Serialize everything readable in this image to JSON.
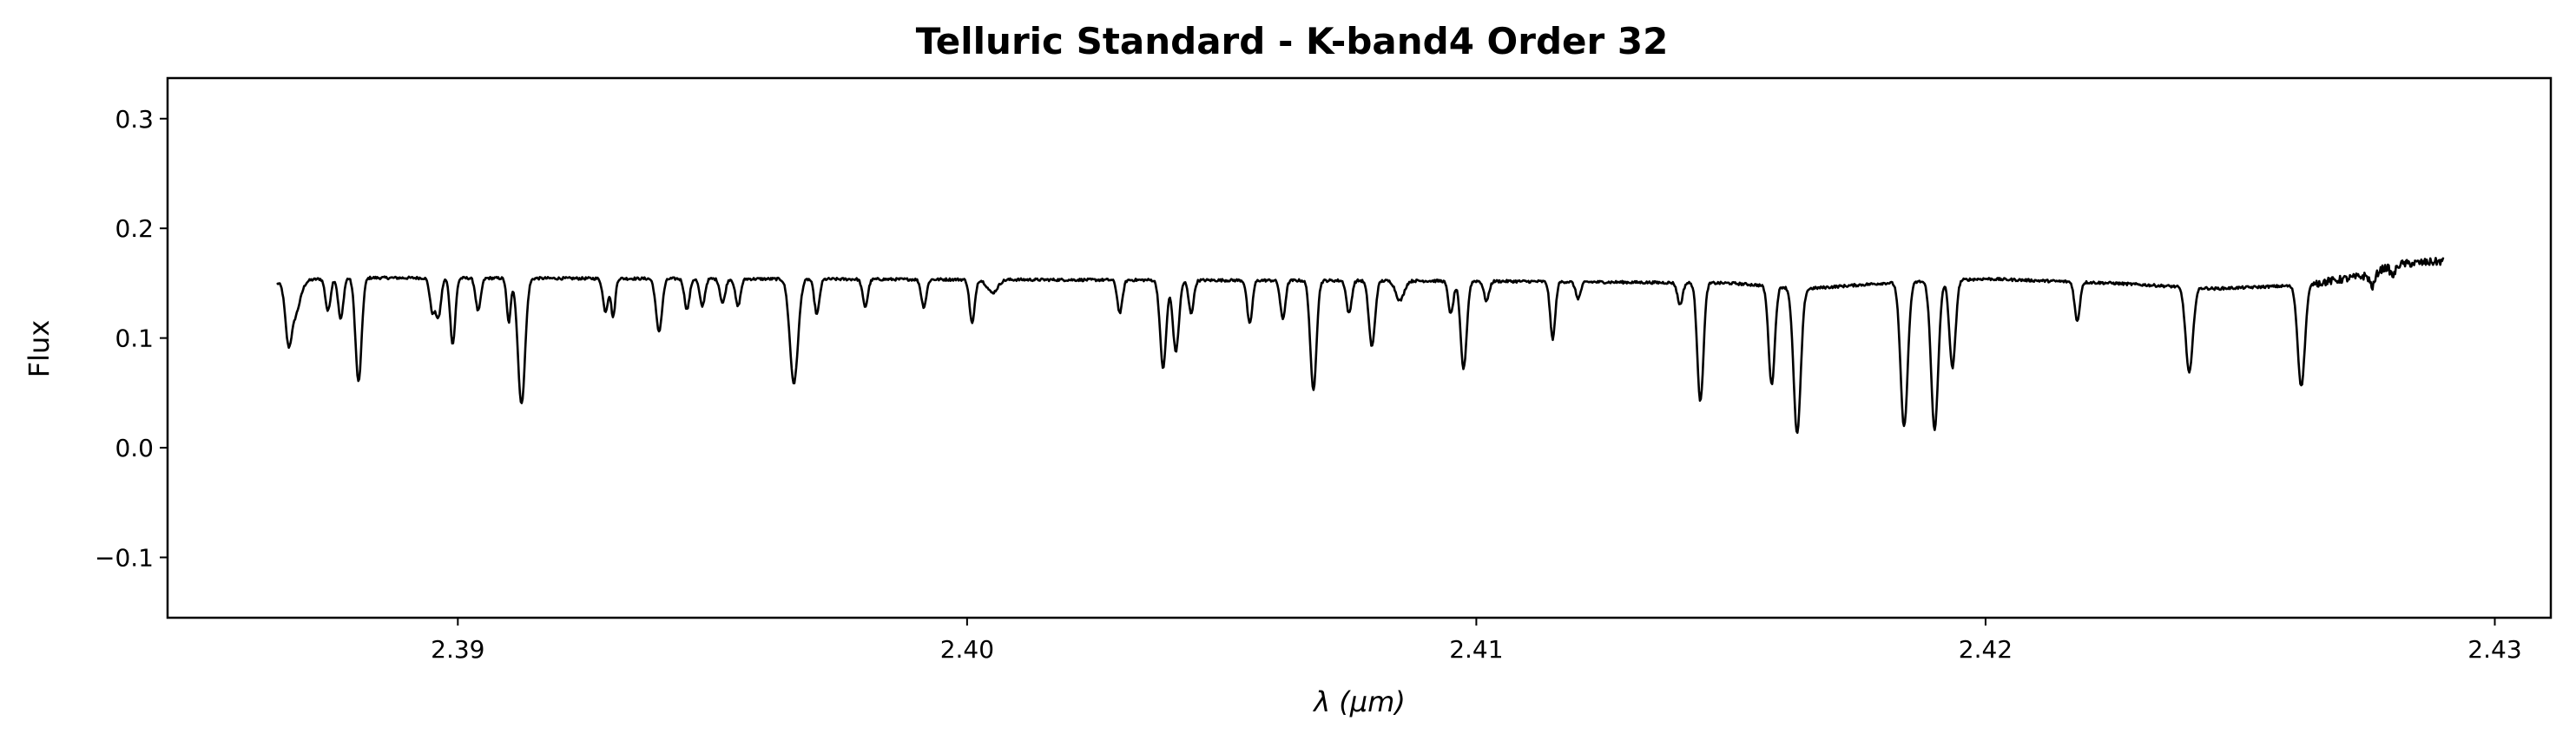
{
  "chart_data": {
    "type": "line",
    "title": "Telluric Standard - K-band4 Order 32",
    "xlabel": "λ (μm)",
    "ylabel": "Flux",
    "xlim": [
      2.3843,
      2.4311
    ],
    "ylim": [
      -0.155,
      0.337
    ],
    "xticks": [
      {
        "value": 2.39,
        "label": "2.39"
      },
      {
        "value": 2.4,
        "label": "2.40"
      },
      {
        "value": 2.41,
        "label": "2.41"
      },
      {
        "value": 2.42,
        "label": "2.42"
      },
      {
        "value": 2.43,
        "label": "2.43"
      }
    ],
    "yticks": [
      {
        "value": -0.1,
        "label": "−0.1"
      },
      {
        "value": 0.0,
        "label": "0.0"
      },
      {
        "value": 0.1,
        "label": "0.1"
      },
      {
        "value": 0.2,
        "label": "0.2"
      },
      {
        "value": 0.3,
        "label": "0.3"
      }
    ],
    "grid": false,
    "line_color": "#000000",
    "series": [
      {
        "continuum": [
          [
            2.3865,
            0.15
          ],
          [
            2.3875,
            0.155
          ],
          [
            2.41,
            0.152
          ],
          [
            2.415,
            0.15
          ],
          [
            2.4165,
            0.145
          ],
          [
            2.418,
            0.15
          ],
          [
            2.42,
            0.154
          ],
          [
            2.4225,
            0.15
          ],
          [
            2.4245,
            0.145
          ],
          [
            2.4262,
            0.148
          ],
          [
            2.4275,
            0.157
          ],
          [
            2.428,
            0.167
          ],
          [
            2.429,
            0.17
          ]
        ],
        "absorption_lines": [
          [
            2.38667,
            0.045,
            6e-05
          ],
          [
            2.3868,
            0.03,
            0.0001
          ],
          [
            2.38745,
            0.03,
            5e-05
          ],
          [
            2.3877,
            0.038,
            5e-05
          ],
          [
            2.38805,
            0.095,
            6e-05
          ],
          [
            2.3895,
            0.03,
            5e-05
          ],
          [
            2.38962,
            0.035,
            5e-05
          ],
          [
            2.3899,
            0.06,
            5e-05
          ],
          [
            2.3904,
            0.03,
            5e-05
          ],
          [
            2.391,
            0.04,
            4e-05
          ],
          [
            2.39125,
            0.115,
            7e-05
          ],
          [
            2.3929,
            0.03,
            5e-05
          ],
          [
            2.39305,
            0.035,
            4e-05
          ],
          [
            2.39395,
            0.048,
            6e-05
          ],
          [
            2.3945,
            0.028,
            5e-05
          ],
          [
            2.3948,
            0.025,
            5e-05
          ],
          [
            2.3952,
            0.022,
            5e-05
          ],
          [
            2.3955,
            0.025,
            5e-05
          ],
          [
            2.3966,
            0.095,
            8e-05
          ],
          [
            2.39705,
            0.032,
            5e-05
          ],
          [
            2.398,
            0.025,
            5e-05
          ],
          [
            2.39915,
            0.025,
            5e-05
          ],
          [
            2.4001,
            0.04,
            5e-05
          ],
          [
            2.4005,
            0.012,
            0.0001
          ],
          [
            2.403,
            0.03,
            5e-05
          ],
          [
            2.40385,
            0.08,
            6e-05
          ],
          [
            2.4041,
            0.065,
            6e-05
          ],
          [
            2.4044,
            0.03,
            5e-05
          ],
          [
            2.40555,
            0.04,
            5e-05
          ],
          [
            2.4062,
            0.035,
            5e-05
          ],
          [
            2.4068,
            0.1,
            6e-05
          ],
          [
            2.4075,
            0.03,
            5e-05
          ],
          [
            2.40795,
            0.06,
            6e-05
          ],
          [
            2.4085,
            0.018,
            8e-05
          ],
          [
            2.4095,
            0.03,
            5e-05
          ],
          [
            2.40975,
            0.08,
            6e-05
          ],
          [
            2.4102,
            0.018,
            5e-05
          ],
          [
            2.4115,
            0.052,
            5e-05
          ],
          [
            2.412,
            0.015,
            5e-05
          ],
          [
            2.414,
            0.02,
            5e-05
          ],
          [
            2.4144,
            0.108,
            6e-05
          ],
          [
            2.4158,
            0.09,
            6e-05
          ],
          [
            2.4163,
            0.133,
            7e-05
          ],
          [
            2.4184,
            0.132,
            7e-05
          ],
          [
            2.419,
            0.135,
            7e-05
          ],
          [
            2.41935,
            0.08,
            6e-05
          ],
          [
            2.4218,
            0.036,
            5e-05
          ],
          [
            2.424,
            0.078,
            7e-05
          ],
          [
            2.4262,
            0.092,
            7e-05
          ],
          [
            2.4276,
            0.012,
            5e-05
          ],
          [
            2.428,
            0.01,
            5e-05
          ]
        ]
      }
    ]
  }
}
